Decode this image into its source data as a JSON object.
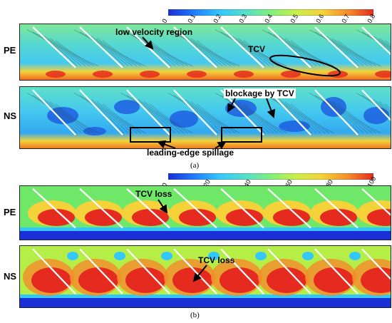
{
  "figure_a": {
    "colorbar": {
      "ticks": [
        "0",
        "0.1",
        "0.2",
        "0.3",
        "0.4",
        "0.5",
        "0.6",
        "0.7",
        "0.8"
      ],
      "colors": [
        "#1a2fd6",
        "#1f78ff",
        "#33c7ff",
        "#56e0c8",
        "#7ff07a",
        "#c8f04a",
        "#f5d23a",
        "#f58a2a",
        "#e52b1f"
      ]
    },
    "rows": [
      {
        "label": "PE"
      },
      {
        "label": "NS"
      }
    ],
    "annotations": {
      "low_velocity": "low velocity region",
      "tcv": "TCV",
      "blockage": "blockage by TCV",
      "spillage": "leading-edge spillage"
    },
    "caption": "(a)"
  },
  "figure_b": {
    "colorbar": {
      "ticks": [
        "0",
        "20",
        "40",
        "60",
        "80",
        "100"
      ],
      "colors": [
        "#1a2fd6",
        "#1f78ff",
        "#33c7ff",
        "#56e0c8",
        "#7ff07a",
        "#c8f04a",
        "#f5d23a",
        "#f58a2a",
        "#e52b1f"
      ]
    },
    "rows": [
      {
        "label": "PE"
      },
      {
        "label": "NS"
      }
    ],
    "annotations": {
      "tcv_loss_pe": "TCV loss",
      "tcv_loss_ns": "TCV loss"
    },
    "caption": "(b)"
  }
}
